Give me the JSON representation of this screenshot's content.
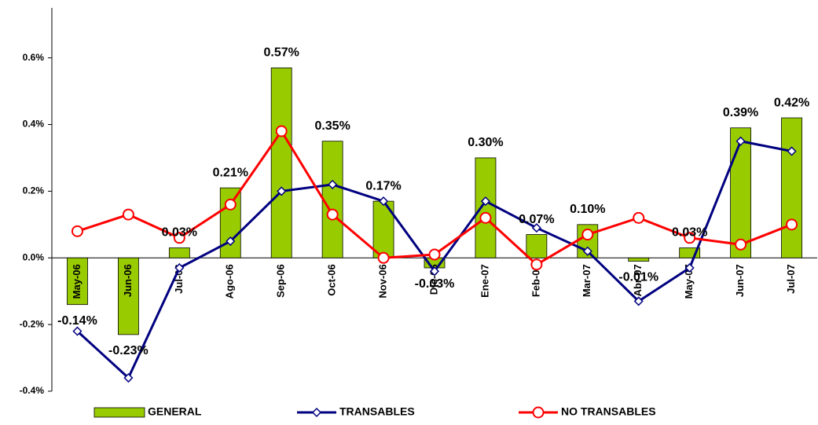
{
  "chart_data": {
    "type": "combo",
    "categories": [
      "May-06",
      "Jun-06",
      "Jul-06",
      "Ago-06",
      "Sep-06",
      "Oct-06",
      "Nov-06",
      "Dic-06",
      "Ene-07",
      "Feb-07",
      "Mar-07",
      "Abr-07",
      "May-07",
      "Jun-07",
      "Jul-07"
    ],
    "series": [
      {
        "name": "GENERAL",
        "type": "bar",
        "color": "#99cc00",
        "values": [
          -0.14,
          -0.23,
          0.03,
          0.21,
          0.57,
          0.35,
          0.17,
          -0.03,
          0.3,
          0.07,
          0.1,
          -0.01,
          0.03,
          0.39,
          0.42
        ],
        "value_labels": [
          "-0.14%",
          "-0.23%",
          "0.03%",
          "0.21%",
          "0.57%",
          "0.35%",
          "0.17%",
          "-0.03%",
          "0.30%",
          "0.07%",
          "0.10%",
          "-0.01%",
          "0.03%",
          "0.39%",
          "0.42%"
        ]
      },
      {
        "name": "TRANSABLES",
        "type": "line",
        "marker": "diamond",
        "color": "#000080",
        "values": [
          -0.22,
          -0.36,
          -0.03,
          0.05,
          0.2,
          0.22,
          0.17,
          -0.04,
          0.17,
          0.09,
          0.02,
          -0.13,
          -0.03,
          0.35,
          0.32
        ]
      },
      {
        "name": "NO TRANSABLES",
        "type": "line",
        "marker": "circle",
        "color": "#ff0000",
        "values": [
          0.08,
          0.13,
          0.06,
          0.16,
          0.38,
          0.13,
          0.0,
          0.01,
          0.12,
          -0.02,
          0.07,
          0.12,
          0.06,
          0.04,
          0.1
        ]
      }
    ],
    "ylim": [
      -0.4,
      0.75
    ],
    "yticks": [
      {
        "value": -0.4,
        "label": "-0.4%"
      },
      {
        "value": -0.2,
        "label": "-0.2%"
      },
      {
        "value": 0,
        "label": "0.0%"
      },
      {
        "value": 0.2,
        "label": "0.2%"
      },
      {
        "value": 0.4,
        "label": "0.4%"
      },
      {
        "value": 0.6,
        "label": "0.6%"
      }
    ],
    "legend": "bottom"
  }
}
